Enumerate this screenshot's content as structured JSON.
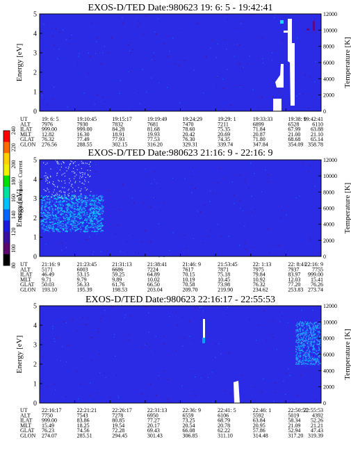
{
  "colorbar": {
    "label": "Second Harmonic Current",
    "ticks": [
      "240",
      "220",
      "200",
      "180",
      "160",
      "140",
      "120",
      "100",
      "80"
    ],
    "colors": [
      "#ff0000",
      "#ff6a00",
      "#ffd000",
      "#f0f000",
      "#00e000",
      "#00e0a0",
      "#00c0ff",
      "#0066ff",
      "#1a1ae0",
      "#3a10a0",
      "#5a0870",
      "#000000"
    ]
  },
  "colors": {
    "background": "#2b2be6",
    "speckle_dark": "#4b0f8c",
    "speckle_bright": "#1e66ff",
    "noise_light": "#3aa0ff"
  },
  "chart_data": [
    {
      "type": "heatmap",
      "title": "EXOS-D/TED   Date:980623  19: 6: 5 - 19:42:41",
      "ylabel": "Energy [eV]",
      "y2label": "Temperature [K]",
      "ylim": [
        0,
        5
      ],
      "y2lim": [
        0,
        12000
      ],
      "yticks": [
        "0",
        "1",
        "2",
        "3",
        "4",
        "5"
      ],
      "y2ticks": [
        "0",
        "2000",
        "4000",
        "6000",
        "8000",
        "10000",
        "12000"
      ],
      "ephemeris": {
        "row_labels": [
          "UT",
          "ALT",
          "ILAT",
          "MLT",
          "GLAT",
          "GLON"
        ],
        "columns": [
          [
            "19: 6: 5",
            "7976",
            "999.00",
            "12.82",
            "76.32",
            "276.56"
          ],
          [
            "19:10:45",
            "7930",
            "999.00",
            "16.30",
            "77.49",
            "288.55"
          ],
          [
            "19:15:17",
            "7832",
            "84.28",
            "18.91",
            "77.93",
            "302.15"
          ],
          [
            "19:19:49",
            "7681",
            "81.68",
            "19.93",
            "77.53",
            "316.20"
          ],
          [
            "19:24:29",
            "7470",
            "78.60",
            "20.42",
            "76.30",
            "329.31"
          ],
          [
            "19:29: 1",
            "7211",
            "75.35",
            "20.69",
            "74.35",
            "339.74"
          ],
          [
            "19:33:33",
            "6899",
            "71.84",
            "20.87",
            "71.80",
            "347.84"
          ],
          [
            "19:38: 9",
            "6528",
            "67.99",
            "21.00",
            "68.68",
            "354.09"
          ],
          [
            "19:42:41",
            "6110",
            "63.88",
            "21.10",
            "65.14",
            "358.78"
          ]
        ]
      }
    },
    {
      "type": "heatmap",
      "title": "EXOS-D/TED   Date:980623  21:16: 9 - 22:16: 9",
      "ylabel": "Energy [eV]",
      "y2label": "Temperature [K]",
      "ylim": [
        0,
        5
      ],
      "y2lim": [
        0,
        12000
      ],
      "yticks": [
        "0",
        "1",
        "2",
        "3",
        "4",
        "5"
      ],
      "y2ticks": [
        "0",
        "2000",
        "4000",
        "6000",
        "8000",
        "10000",
        "12000"
      ],
      "ephemeris": {
        "row_labels": [
          "UT",
          "ALT",
          "ILAT",
          "MLT",
          "GLAT",
          "GLON"
        ],
        "columns": [
          [
            "21:16: 9",
            "5171",
            "46.49",
            "9.71",
            "50.03",
            "193.10"
          ],
          [
            "21:23:45",
            "6003",
            "53.15",
            "9.79",
            "56.33",
            "195.39"
          ],
          [
            "21:31:13",
            "6686",
            "59.25",
            "9.89",
            "61.76",
            "198.53"
          ],
          [
            "21:38:41",
            "7224",
            "64.89",
            "10.02",
            "66.50",
            "203.04"
          ],
          [
            "21:46: 9",
            "7617",
            "70.15",
            "10.19",
            "70.58",
            "209.70"
          ],
          [
            "21:53:45",
            "7871",
            "75.18",
            "10.45",
            "73.98",
            "219.90"
          ],
          [
            "22: 1:13",
            "7975",
            "79.84",
            "10.92",
            "76.32",
            "234.62"
          ],
          [
            "22: 8:41",
            "7937",
            "83.97",
            "12.03",
            "77.20",
            "253.83"
          ],
          [
            "22:16: 9",
            "7755",
            "999.00",
            "15.41",
            "76.26",
            "273.74"
          ]
        ]
      }
    },
    {
      "type": "heatmap",
      "title": "EXOS-D/TED   Date:980623  22:16:17 - 22:55:53",
      "ylabel": "Energy [eV]",
      "y2label": "Temperature [K]",
      "ylim": [
        0,
        5
      ],
      "y2lim": [
        0,
        12000
      ],
      "yticks": [
        "0",
        "1",
        "2",
        "3",
        "4",
        "5"
      ],
      "y2ticks": [
        "0",
        "2000",
        "4000",
        "6000",
        "8000",
        "10000",
        "12000"
      ],
      "ephemeris": {
        "row_labels": [
          "UT",
          "ALT",
          "ILAT",
          "MLT",
          "GLAT",
          "GLON"
        ],
        "columns": [
          [
            "22:16:17",
            "7750",
            "999.00",
            "15.49",
            "76.23",
            "274.07"
          ],
          [
            "22:21:21",
            "7543",
            "83.86",
            "18.25",
            "74.56",
            "285.51"
          ],
          [
            "22:26:17",
            "7278",
            "80.85",
            "19.54",
            "72.28",
            "294.45"
          ],
          [
            "22:31:13",
            "6950",
            "77.27",
            "20.17",
            "69.43",
            "301.43"
          ],
          [
            "22:36: 9",
            "6559",
            "73.25",
            "20.54",
            "66.08",
            "306.85"
          ],
          [
            "22:41: 5",
            "6106",
            "68.79",
            "20.78",
            "62.22",
            "311.10"
          ],
          [
            "22:46: 1",
            "5592",
            "63.84",
            "20.95",
            "57.86",
            "314.48"
          ],
          [
            "22:50:57",
            "5019",
            "58.34",
            "21.09",
            "52.94",
            "317.20"
          ],
          [
            "22:55:53",
            "4392",
            "52.26",
            "21.21",
            "47.43",
            "319.39"
          ]
        ]
      }
    }
  ]
}
